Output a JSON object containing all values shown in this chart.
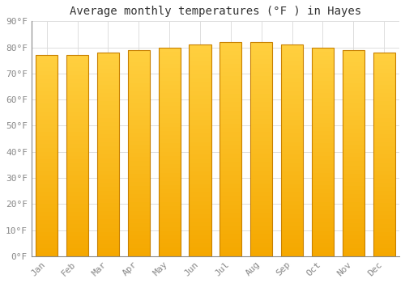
{
  "title": "Average monthly temperatures (°F ) in Hayes",
  "categories": [
    "Jan",
    "Feb",
    "Mar",
    "Apr",
    "May",
    "Jun",
    "Jul",
    "Aug",
    "Sep",
    "Oct",
    "Nov",
    "Dec"
  ],
  "values": [
    77,
    77,
    78,
    79,
    80,
    81,
    82,
    82,
    81,
    80,
    79,
    78
  ],
  "bar_color_top": "#FFD040",
  "bar_color_bottom": "#F5A800",
  "bar_edge_color": "#C88000",
  "ylim": [
    0,
    90
  ],
  "yticks": [
    0,
    10,
    20,
    30,
    40,
    50,
    60,
    70,
    80,
    90
  ],
  "ytick_labels": [
    "0°F",
    "10°F",
    "20°F",
    "30°F",
    "40°F",
    "50°F",
    "60°F",
    "70°F",
    "80°F",
    "90°F"
  ],
  "background_color": "#FFFFFF",
  "plot_bg_color": "#FFFFFF",
  "grid_color": "#DDDDDD",
  "title_fontsize": 10,
  "tick_fontsize": 8,
  "tick_color": "#888888",
  "font_family": "monospace"
}
